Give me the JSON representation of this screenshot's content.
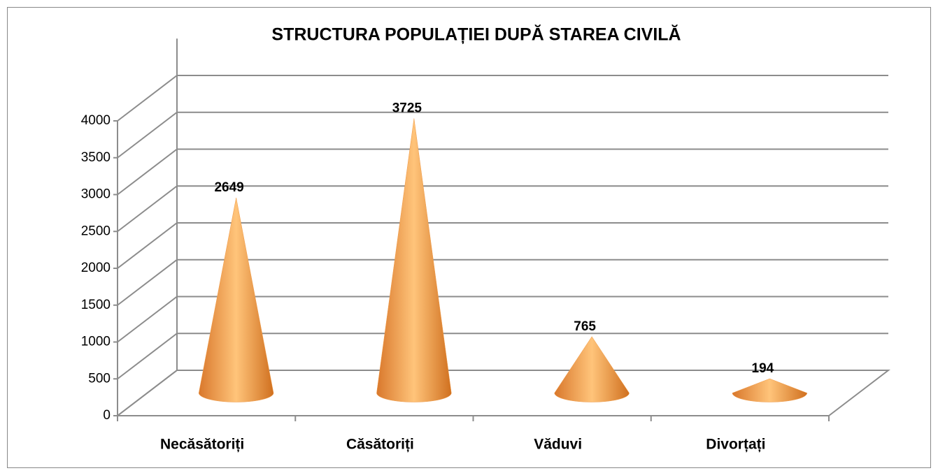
{
  "chart_data": {
    "type": "bar3d_cone",
    "title": "STRUCTURA POPULAȚIEI DUPĂ STAREA CIVILĂ",
    "categories": [
      "Necăsătoriți",
      "Căsătoriți",
      "Văduvi",
      "Divorțați"
    ],
    "values": [
      2649,
      3725,
      765,
      194
    ],
    "color": "#f09a46",
    "ylim": [
      0,
      4000
    ],
    "yticks": [
      0,
      500,
      1000,
      1500,
      2000,
      2500,
      3000,
      3500,
      4000
    ],
    "grid": true
  }
}
